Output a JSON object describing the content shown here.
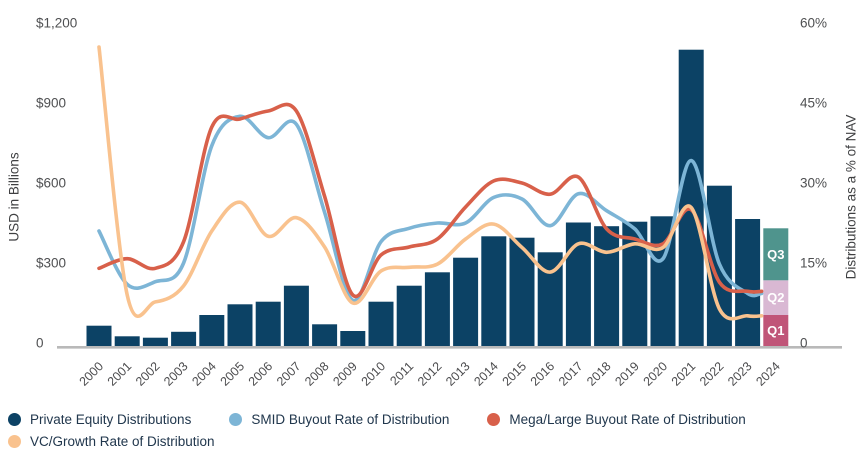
{
  "chart_data": {
    "type": "bar+line combo",
    "title": "",
    "x": [
      2000,
      2001,
      2002,
      2003,
      2004,
      2005,
      2006,
      2007,
      2008,
      2009,
      2010,
      2011,
      2012,
      2013,
      2014,
      2015,
      2016,
      2017,
      2018,
      2019,
      2020,
      2021,
      2022,
      2023,
      2024
    ],
    "bar_series": {
      "name": "Private Equity Distributions",
      "unit": "USD in Billions",
      "color": "#0c4265",
      "values": [
        65,
        25,
        20,
        42,
        105,
        145,
        155,
        215,
        70,
        45,
        155,
        215,
        265,
        320,
        400,
        395,
        340,
        452,
        438,
        455,
        475,
        1100,
        590,
        465,
        null
      ]
    },
    "stacked_2024": {
      "year": 2024,
      "segments": [
        {
          "label": "Q1",
          "value": 105,
          "color": "#c05578"
        },
        {
          "label": "Q2",
          "value": 130,
          "color": "#d9b8d3"
        },
        {
          "label": "Q3",
          "value": 195,
          "color": "#4f948d"
        }
      ]
    },
    "line_series": [
      {
        "name": "SMID Buyout Rate of Distribution",
        "unit": "% of NAV",
        "color": "#7db5d6",
        "values": [
          21,
          11,
          11.5,
          15,
          37,
          42.5,
          38.5,
          41,
          24.5,
          8,
          19,
          21.5,
          22.5,
          22.5,
          27.3,
          27,
          22,
          28,
          24.8,
          21.4,
          15.8,
          34.2,
          14.8,
          9.3
        ]
      },
      {
        "name": "Mega/Large Buyout Rate of Distribution",
        "unit": "% of NAV",
        "color": "#d8604a",
        "values": [
          14,
          15.8,
          14,
          19,
          40.5,
          42,
          43.5,
          43.5,
          27.5,
          9,
          16.5,
          18,
          19.5,
          25.5,
          30.4,
          30,
          27.9,
          31.1,
          21.4,
          19.5,
          18.6,
          25,
          11.4,
          9.7
        ]
      },
      {
        "name": "VC/Growth Rate of Distribution",
        "unit": "% of NAV",
        "color": "#f9c28e",
        "values": [
          55.5,
          9,
          7.7,
          10.7,
          21,
          26.4,
          20,
          23.5,
          18,
          7.5,
          13.5,
          14.2,
          14.8,
          19.5,
          22.3,
          17.9,
          13.3,
          18.6,
          17,
          18.6,
          17.9,
          25.4,
          6.4,
          5.1
        ]
      }
    ],
    "left_axis": {
      "label": "USD in Billions",
      "min": 0,
      "max": 1200,
      "ticks": [
        {
          "label": "$1,200",
          "value": 1200
        },
        {
          "label": "$900",
          "value": 900
        },
        {
          "label": "$600",
          "value": 600
        },
        {
          "label": "$300",
          "value": 300
        },
        {
          "label": "0",
          "value": 0
        }
      ]
    },
    "right_axis": {
      "label": "Distributions as a % of NAV",
      "min": 0,
      "max": 60,
      "ticks": [
        {
          "label": "60%",
          "value": 60
        },
        {
          "label": "45%",
          "value": 45
        },
        {
          "label": "30%",
          "value": 30
        },
        {
          "label": "15%",
          "value": 15
        },
        {
          "label": "0",
          "value": 0
        }
      ]
    },
    "grid": false,
    "legend_position": "bottom-left"
  },
  "legend": {
    "items": [
      {
        "label": "Private Equity Distributions",
        "color": "#0c4265"
      },
      {
        "label": "SMID Buyout Rate of Distribution",
        "color": "#7db5d6"
      },
      {
        "label": "Mega/Large Buyout Rate of Distribution",
        "color": "#d8604a"
      },
      {
        "label": "VC/Growth Rate of Distribution",
        "color": "#f9c28e"
      }
    ]
  },
  "style": {
    "tick_color": "#4f5052",
    "year_color": "#4d4d4f",
    "baseline_color": "#b9b9b9",
    "q_label_color": "#ffffff"
  }
}
